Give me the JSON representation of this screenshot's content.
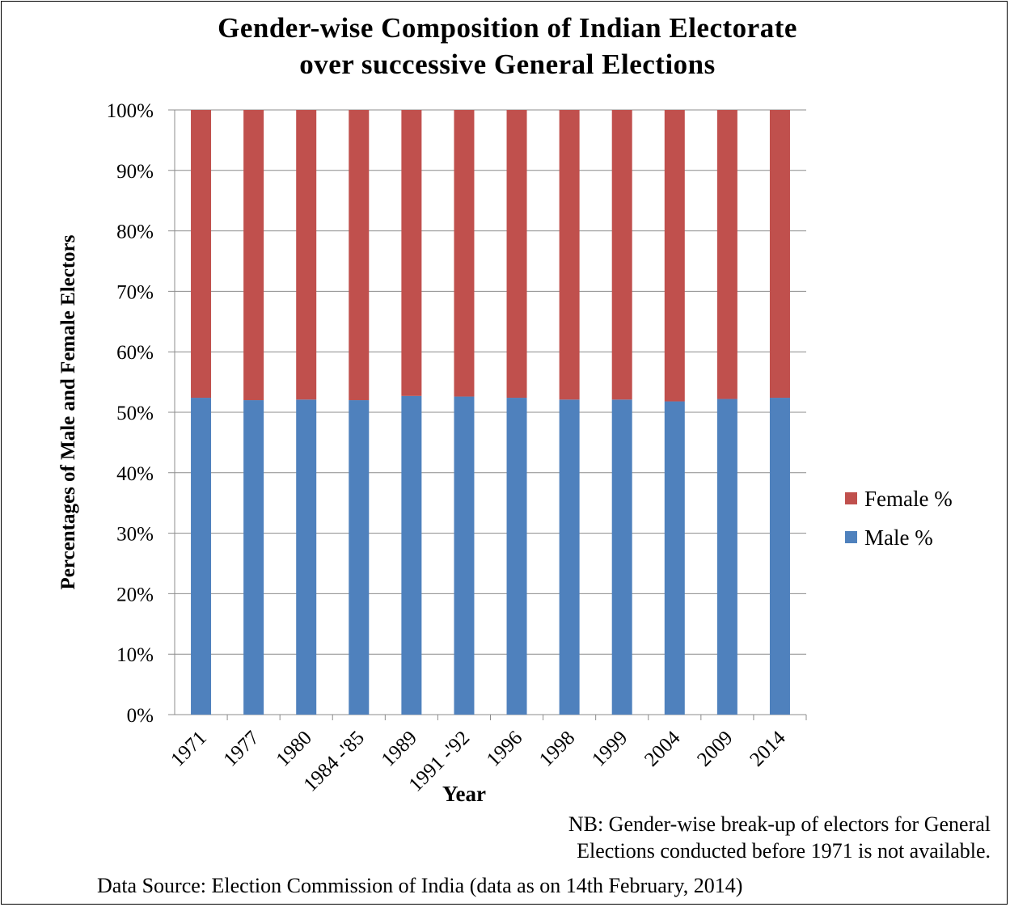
{
  "chart_data": {
    "type": "bar",
    "stacked": true,
    "percent": true,
    "title_lines": [
      "Gender-wise Composition of Indian Electorate",
      "over successive General Elections"
    ],
    "xlabel": "Year",
    "ylabel": "Percentages of Male and Female Electors",
    "categories": [
      "1971",
      "1977",
      "1980",
      "1984 -'85",
      "1989",
      "1991 -'92",
      "1996",
      "1998",
      "1999",
      "2004",
      "2009",
      "2014"
    ],
    "series": [
      {
        "name": "Male %",
        "color": "#4f81bd",
        "values": [
          52.4,
          52.0,
          52.1,
          52.0,
          52.7,
          52.6,
          52.4,
          52.1,
          52.1,
          51.8,
          52.2,
          52.4
        ]
      },
      {
        "name": "Female %",
        "color": "#c0504d",
        "values": [
          47.6,
          48.0,
          47.9,
          48.0,
          47.3,
          47.4,
          47.6,
          47.9,
          47.9,
          48.2,
          47.8,
          47.6
        ]
      }
    ],
    "y_ticks": [
      "0%",
      "10%",
      "20%",
      "30%",
      "40%",
      "50%",
      "60%",
      "70%",
      "80%",
      "90%",
      "100%"
    ],
    "ylim": [
      0,
      100
    ],
    "grid": true,
    "legend_position": "right",
    "legend": [
      {
        "label": "Female %",
        "color": "#c0504d"
      },
      {
        "label": "Male %",
        "color": "#4f81bd"
      }
    ]
  },
  "note_lines": [
    "NB: Gender-wise break-up of electors for General",
    "Elections conducted before 1971 is not available."
  ],
  "source": "Data Source: Election Commission of India (data as on 14th February, 2014)"
}
